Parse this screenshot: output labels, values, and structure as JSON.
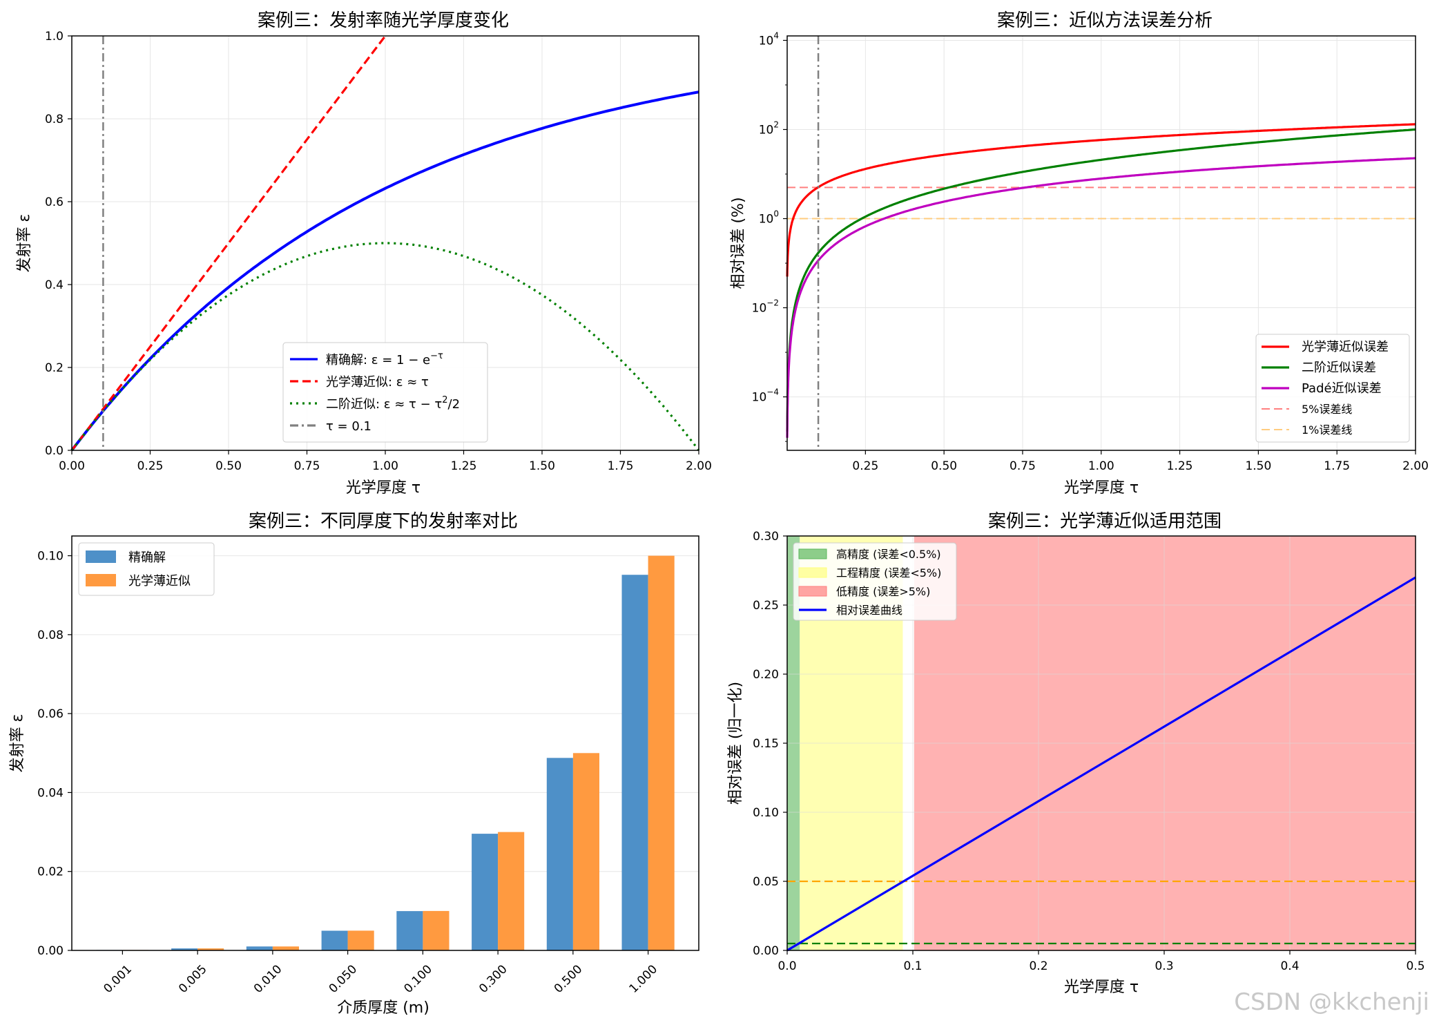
{
  "watermark": "CSDN @kkchenji",
  "chart_data": [
    {
      "type": "line",
      "title": "案例三：发射率随光学厚度变化",
      "xlabel": "光学厚度 τ",
      "ylabel": "发射率 ε",
      "xlim": [
        0,
        2
      ],
      "ylim": [
        0,
        1
      ],
      "xticks": [
        "0.00",
        "0.25",
        "0.50",
        "0.75",
        "1.00",
        "1.25",
        "1.50",
        "1.75",
        "2.00"
      ],
      "yticks": [
        "0.0",
        "0.2",
        "0.4",
        "0.6",
        "0.8",
        "1.0"
      ],
      "grid": true,
      "legend_position": "lower-center",
      "series": [
        {
          "name": "精确解: ε = 1 − e^{−τ}",
          "color": "#0000ff",
          "style": "solid",
          "x": [
            0,
            0.1,
            0.2,
            0.3,
            0.4,
            0.5,
            0.6,
            0.7,
            0.8,
            0.9,
            1.0,
            1.1,
            1.2,
            1.3,
            1.4,
            1.5,
            1.6,
            1.7,
            1.8,
            1.9,
            2.0
          ],
          "y": [
            0,
            0.095,
            0.181,
            0.259,
            0.33,
            0.393,
            0.451,
            0.503,
            0.551,
            0.593,
            0.632,
            0.667,
            0.699,
            0.727,
            0.753,
            0.777,
            0.798,
            0.817,
            0.835,
            0.85,
            0.865
          ]
        },
        {
          "name": "光学薄近似: ε ≈ τ",
          "color": "#ff0000",
          "style": "dashed",
          "x": [
            0,
            1.0
          ],
          "y": [
            0,
            1.0
          ]
        },
        {
          "name": "二阶近似: ε ≈ τ − τ²/2",
          "color": "#008000",
          "style": "dotted",
          "x": [
            0,
            0.1,
            0.2,
            0.3,
            0.4,
            0.5,
            0.6,
            0.7,
            0.8,
            0.9,
            1.0,
            1.1,
            1.2,
            1.3,
            1.4,
            1.5,
            1.6,
            1.7,
            1.8,
            1.9,
            2.0
          ],
          "y": [
            0,
            0.095,
            0.18,
            0.255,
            0.32,
            0.375,
            0.42,
            0.455,
            0.48,
            0.495,
            0.5,
            0.495,
            0.48,
            0.455,
            0.42,
            0.375,
            0.32,
            0.255,
            0.18,
            0.095,
            0
          ]
        },
        {
          "name": "τ = 0.1",
          "color": "#808080",
          "style": "dashdot",
          "vline": 0.1
        }
      ]
    },
    {
      "type": "line",
      "title": "案例三：近似方法误差分析",
      "xlabel": "光学厚度 τ",
      "ylabel": "相对误差 (%)",
      "xlim": [
        0.001,
        2
      ],
      "ylim_log10": [
        -5.2,
        4.1
      ],
      "log_y": true,
      "xticks": [
        "0.25",
        "0.50",
        "0.75",
        "1.00",
        "1.25",
        "1.50",
        "1.75",
        "2.00"
      ],
      "ytick_labels": [
        {
          "base": "10",
          "exp": "4"
        },
        {
          "base": "10",
          "exp": "2"
        },
        {
          "base": "10",
          "exp": "0"
        },
        {
          "base": "10",
          "exp": "−2"
        },
        {
          "base": "10",
          "exp": "−4"
        }
      ],
      "ytick_exps": [
        4,
        2,
        0,
        -2,
        -4
      ],
      "grid": true,
      "legend_position": "lower-right",
      "vline": {
        "x": 0.1,
        "color": "#808080"
      },
      "series": [
        {
          "name": "光学薄近似误差",
          "color": "#ff0000",
          "style": "solid",
          "kind": "thin"
        },
        {
          "name": "二阶近似误差",
          "color": "#008000",
          "style": "solid",
          "kind": "second"
        },
        {
          "name": "Padé近似误差",
          "color": "#bf00bf",
          "style": "solid",
          "kind": "pade"
        },
        {
          "name": "5%误差线",
          "color": "#ff7f7f",
          "style": "dashed",
          "hline": 5
        },
        {
          "name": "1%误差线",
          "color": "#ffcc7f",
          "style": "dashed",
          "hline": 1
        }
      ]
    },
    {
      "type": "bar",
      "title": "案例三：不同厚度下的发射率对比",
      "xlabel": "介质厚度 (m)",
      "ylabel": "发射率 ε",
      "ylim": [
        0,
        0.105
      ],
      "yticks": [
        "0.00",
        "0.02",
        "0.04",
        "0.06",
        "0.08",
        "0.10"
      ],
      "categories": [
        "0.001",
        "0.005",
        "0.010",
        "0.050",
        "0.100",
        "0.300",
        "0.500",
        "1.000"
      ],
      "grid": true,
      "legend_position": "top-left",
      "series": [
        {
          "name": "精确解",
          "color": "#4e90c8",
          "values": [
            0.0001,
            0.0005,
            0.001,
            0.00499,
            0.00995,
            0.02956,
            0.04877,
            0.09516
          ]
        },
        {
          "name": "光学薄近似",
          "color": "#ff9a40",
          "values": [
            0.0001,
            0.0005,
            0.001,
            0.005,
            0.01,
            0.03,
            0.05,
            0.1
          ]
        }
      ]
    },
    {
      "type": "area",
      "title": "案例三：光学薄近似适用范围",
      "xlabel": "光学厚度 τ",
      "ylabel": "相对误差 (归一化)",
      "xlim": [
        0,
        0.5
      ],
      "ylim": [
        0,
        0.3
      ],
      "xticks": [
        "0.0",
        "0.1",
        "0.2",
        "0.3",
        "0.4",
        "0.5"
      ],
      "yticks": [
        "0.00",
        "0.05",
        "0.10",
        "0.15",
        "0.20",
        "0.25",
        "0.30"
      ],
      "grid": true,
      "legend_position": "top-left",
      "regions": [
        {
          "name": "高精度 (误差<0.5%)",
          "color": "#5cb85c",
          "x": [
            0,
            0.01
          ]
        },
        {
          "name": "工程精度 (误差<5%)",
          "color": "#ffff7f",
          "x": [
            0.01,
            0.092
          ]
        },
        {
          "name": "低精度 (误差>5%)",
          "color": "#ff7f7f",
          "x": [
            0.101,
            0.5
          ]
        }
      ],
      "series": [
        {
          "name": "相对误差曲线",
          "color": "#0000ff",
          "x": [
            0,
            0.5
          ],
          "y": [
            0,
            0.27
          ]
        }
      ],
      "hlines": [
        {
          "y": 0.05,
          "color": "#ffa500"
        },
        {
          "y": 0.005,
          "color": "#008000"
        }
      ]
    }
  ]
}
